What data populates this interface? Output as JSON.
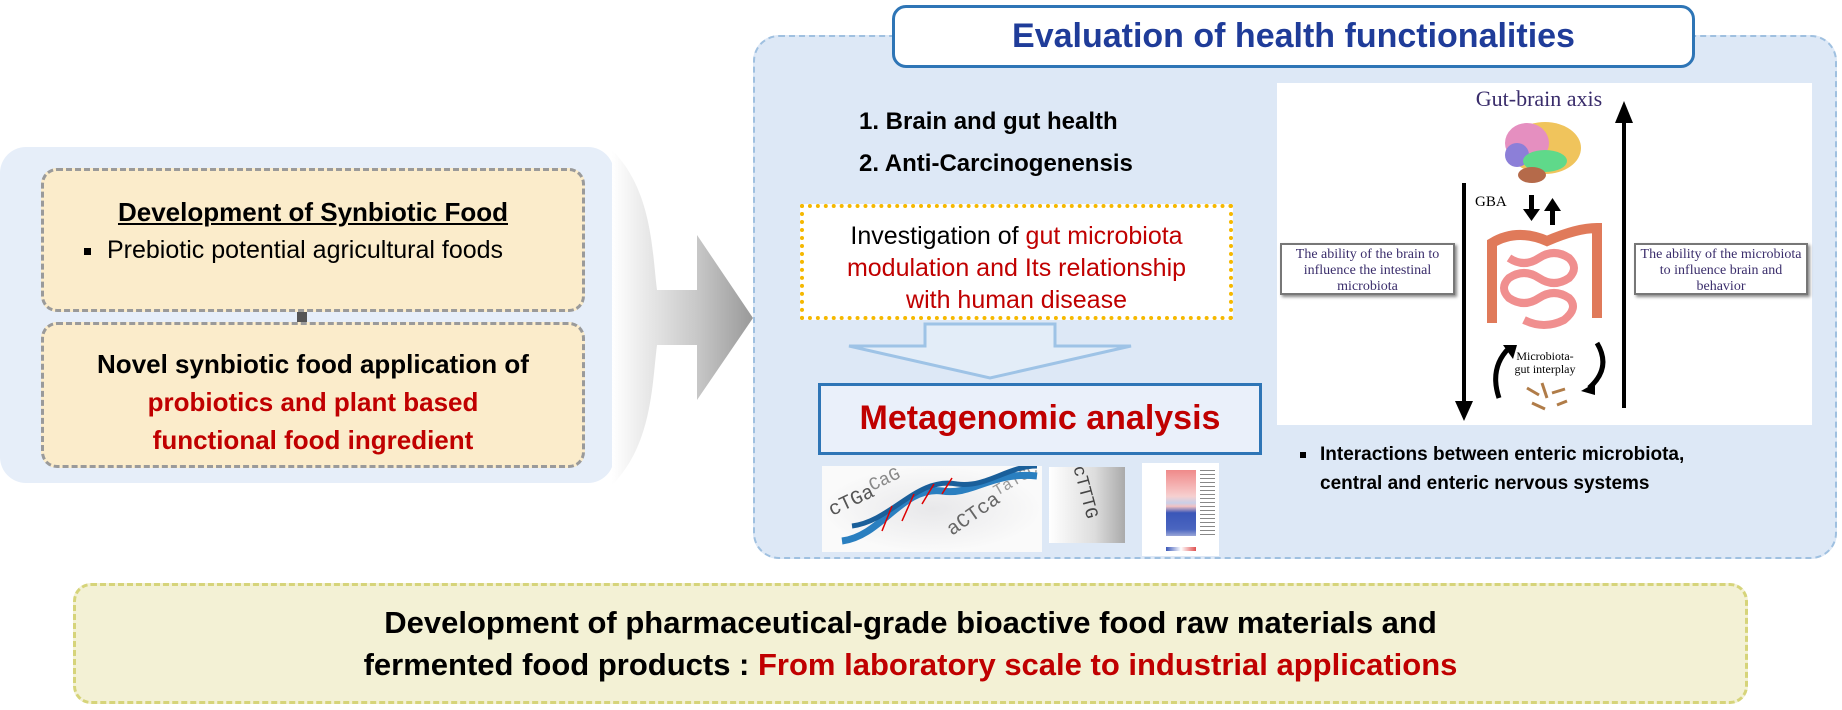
{
  "left": {
    "box1": {
      "title": "Development of Synbiotic Food",
      "bullet": "Prebiotic potential agricultural foods"
    },
    "box2": {
      "line1": "Novel synbiotic food application of",
      "line2_red": "probiotics and plant based",
      "line3_red": "functional food ingredient"
    }
  },
  "right": {
    "title": "Evaluation of health functionalities",
    "items": [
      "1. Brain and gut health",
      "2. Anti-Carcinogenensis"
    ],
    "investigation": {
      "prefix": "Investigation of ",
      "red1": "gut microbiota",
      "red2": "modulation and Its relationship",
      "red3": "with human disease"
    },
    "metagenomic": "Metagenomic analysis",
    "dna_letters": [
      "cTGa",
      "CaG",
      "aCTca",
      "TaTGC",
      "cTTTG"
    ],
    "gut_brain": {
      "title": "Gut-brain axis",
      "gba": "GBA",
      "left_label": "The ability of the brain to influence the intestinal microbiota",
      "right_label": "The ability of the microbiota to influence brain and behavior",
      "interplay": "Microbiota-gut interplay"
    },
    "bullet": [
      "Interactions between enteric microbiota,",
      "central and enteric nervous systems"
    ]
  },
  "bottom": {
    "line1": "Development of pharmaceutical-grade bioactive food raw materials and",
    "line2_black": "fermented food products : ",
    "line2_red": "From laboratory scale to industrial applications"
  },
  "colors": {
    "red": "#c00000",
    "title_blue": "#1f3c99",
    "border_blue": "#2e75b6",
    "box_yellow": "#fbeccb"
  }
}
